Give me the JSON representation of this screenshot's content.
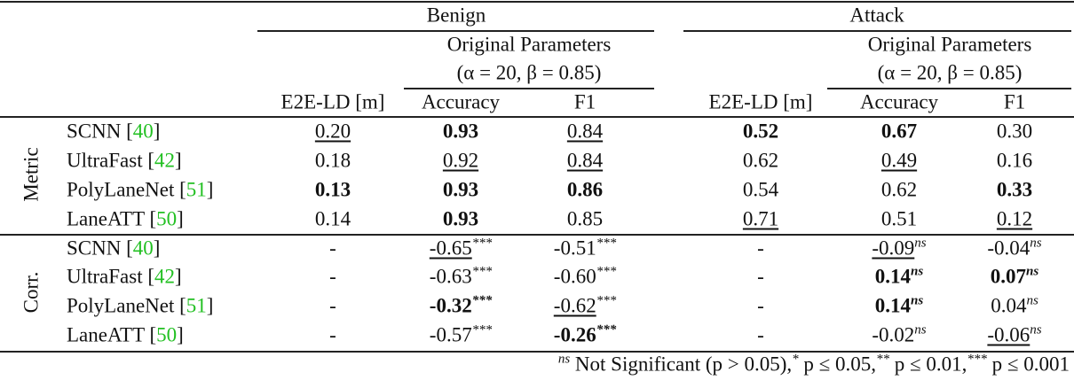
{
  "header": {
    "groups": [
      "Benign",
      "Attack"
    ],
    "subgroup": "Original Parameters",
    "params": "(α = 20, β = 0.85)",
    "columns": [
      "E2E-LD [m]",
      "Accuracy",
      "F1"
    ]
  },
  "sections": [
    {
      "label": "Metric",
      "rows": [
        {
          "model": "SCNN [",
          "ref": "40",
          "close": "]",
          "cells": [
            {
              "text": "0.20",
              "style": "u"
            },
            {
              "text": "0.93",
              "style": "b"
            },
            {
              "text": "0.84",
              "style": "u"
            },
            {
              "text": "0.52",
              "style": "b"
            },
            {
              "text": "0.67",
              "style": "b"
            },
            {
              "text": "0.30"
            }
          ]
        },
        {
          "model": "UltraFast [",
          "ref": "42",
          "close": "]",
          "cells": [
            {
              "text": "0.18"
            },
            {
              "text": "0.92",
              "style": "u"
            },
            {
              "text": "0.84",
              "style": "u"
            },
            {
              "text": "0.62"
            },
            {
              "text": "0.49",
              "style": "u"
            },
            {
              "text": "0.16"
            }
          ]
        },
        {
          "model": "PolyLaneNet [",
          "ref": "51",
          "close": "]",
          "cells": [
            {
              "text": "0.13",
              "style": "b"
            },
            {
              "text": "0.93",
              "style": "b"
            },
            {
              "text": "0.86",
              "style": "b"
            },
            {
              "text": "0.54"
            },
            {
              "text": "0.62"
            },
            {
              "text": "0.33",
              "style": "b"
            }
          ]
        },
        {
          "model": "LaneATT [",
          "ref": "50",
          "close": "]",
          "cells": [
            {
              "text": "0.14"
            },
            {
              "text": "0.93",
              "style": "b"
            },
            {
              "text": "0.85"
            },
            {
              "text": "0.71",
              "style": "u"
            },
            {
              "text": "0.51"
            },
            {
              "text": "0.12",
              "style": "u"
            }
          ]
        }
      ]
    },
    {
      "label": "Corr.",
      "rows": [
        {
          "model": "SCNN [",
          "ref": "40",
          "close": "]",
          "cells": [
            {
              "text": "-"
            },
            {
              "text": "-0.65",
              "sup": "***",
              "style": "u"
            },
            {
              "text": "-0.51",
              "sup": "***"
            },
            {
              "text": "-"
            },
            {
              "text": "-0.09",
              "sup": "ns",
              "style": "u"
            },
            {
              "text": "-0.04",
              "sup": "ns"
            }
          ]
        },
        {
          "model": "UltraFast [",
          "ref": "42",
          "close": "]",
          "cells": [
            {
              "text": "-"
            },
            {
              "text": "-0.63",
              "sup": "***"
            },
            {
              "text": "-0.60",
              "sup": "***"
            },
            {
              "text": "-"
            },
            {
              "text": "0.14",
              "sup": "ns",
              "style": "b"
            },
            {
              "text": "0.07",
              "sup": "ns",
              "style": "b"
            }
          ]
        },
        {
          "model": "PolyLaneNet [",
          "ref": "51",
          "close": "]",
          "cells": [
            {
              "text": "-"
            },
            {
              "text": "-0.32",
              "sup": "***",
              "style": "b"
            },
            {
              "text": "-0.62",
              "sup": "***",
              "style": "u"
            },
            {
              "text": "-"
            },
            {
              "text": "0.14",
              "sup": "ns",
              "style": "b"
            },
            {
              "text": "0.04",
              "sup": "ns"
            }
          ]
        },
        {
          "model": "LaneATT [",
          "ref": "50",
          "close": "]",
          "cells": [
            {
              "text": "-"
            },
            {
              "text": "-0.57",
              "sup": "***"
            },
            {
              "text": "-0.26",
              "sup": "***",
              "style": "b"
            },
            {
              "text": "-"
            },
            {
              "text": "-0.02",
              "sup": "ns"
            },
            {
              "text": "-0.06",
              "sup": "ns",
              "style": "u"
            }
          ]
        }
      ]
    }
  ],
  "footnote": [
    {
      "sup": "ns",
      "text": " Not Significant (p > 0.05),"
    },
    {
      "sup": "*",
      "text": " p ≤ 0.05,"
    },
    {
      "sup": "**",
      "text": " p ≤ 0.01,"
    },
    {
      "sup": "***",
      "text": " p ≤ 0.001"
    }
  ]
}
